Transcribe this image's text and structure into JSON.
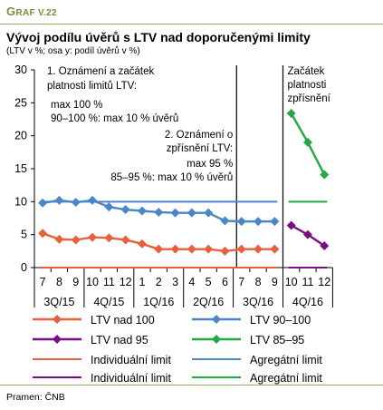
{
  "header": {
    "graf_label_first": "G",
    "graf_label_rest": "RAF V.22",
    "title": "Vývoj podílu úvěrů s LTV nad doporučenými limity",
    "subtitle": "(LTV v %; osa y: podíl úvěrů v %)",
    "source": "Pramen: ČNB"
  },
  "chart_data": {
    "type": "line",
    "y_ticks": [
      "0",
      "5",
      "10",
      "15",
      "20",
      "25",
      "30"
    ],
    "ylim": [
      0,
      30
    ],
    "grid": false,
    "month_labels": [
      "7",
      "8",
      "9",
      "10",
      "11",
      "12",
      "1",
      "2",
      "3",
      "4",
      "5",
      "6",
      "7",
      "8",
      "9",
      "10",
      "11",
      "12"
    ],
    "quarter_labels": [
      "3Q/15",
      "4Q/15",
      "1Q/16",
      "2Q/16",
      "3Q/16",
      "4Q/16"
    ],
    "series": [
      {
        "name": "LTV nad 100",
        "color": "#e8603c",
        "values": [
          5.2,
          4.3,
          4.2,
          4.6,
          4.5,
          4.2,
          3.6,
          2.8,
          2.8,
          2.8,
          2.8,
          2.5,
          2.8,
          2.8,
          2.8,
          null,
          null,
          null
        ]
      },
      {
        "name": "LTV 90–100",
        "color": "#4a86c8",
        "values": [
          9.8,
          10.2,
          9.9,
          10.2,
          9.2,
          8.8,
          8.6,
          8.4,
          8.3,
          8.3,
          8.3,
          7.1,
          7.0,
          7.0,
          7.0,
          null,
          null,
          null
        ]
      },
      {
        "name": "LTV nad 95",
        "color": "#7a0f85",
        "values": [
          null,
          null,
          null,
          null,
          null,
          null,
          null,
          null,
          null,
          null,
          null,
          null,
          null,
          null,
          null,
          6.4,
          5.0,
          3.3
        ]
      },
      {
        "name": "LTV 85–95",
        "color": "#22a845",
        "values": [
          null,
          null,
          null,
          null,
          null,
          null,
          null,
          null,
          null,
          null,
          null,
          null,
          null,
          null,
          null,
          23.4,
          19.0,
          14.1
        ]
      }
    ],
    "limits": [
      {
        "name": "Individuální limit",
        "color": "#e8603c",
        "value": 0,
        "from": "7",
        "to": "9",
        "span": "3Q/15–3Q/16"
      },
      {
        "name": "Agregátní limit",
        "color": "#4a86c8",
        "value": 10,
        "from": "7",
        "to": "9",
        "span": "3Q/15–3Q/16"
      },
      {
        "name": "Individuální limit",
        "color": "#7a0f85",
        "value": 0,
        "from": "10",
        "to": "12",
        "span": "4Q/16"
      },
      {
        "name": "Agregátní limit",
        "color": "#22a845",
        "value": 10,
        "from": "10",
        "to": "12",
        "span": "4Q/16"
      }
    ],
    "annotations": {
      "first_box": [
        "1. Oznámení  a začátek",
        "platnosti limitů LTV:",
        "",
        "max 100 %",
        "90–100 %: max 10 % úvěrů"
      ],
      "second_box": [
        "2. Oznámení o",
        "zpřísnění LTV:",
        "max 95 %",
        "85–95 %: max 10 % úvěrů"
      ],
      "third_box": [
        "Začátek",
        "platnosti",
        "zpřísnění"
      ]
    },
    "legend": [
      {
        "label": "LTV nad 100",
        "color": "#e8603c",
        "marker": "diamond"
      },
      {
        "label": "LTV 90–100",
        "color": "#4a86c8",
        "marker": "diamond"
      },
      {
        "label": "LTV nad 95",
        "color": "#7a0f85",
        "marker": "diamond"
      },
      {
        "label": "LTV 85–95",
        "color": "#22a845",
        "marker": "diamond"
      },
      {
        "label": "Individuální limit",
        "color": "#e8603c",
        "marker": "line"
      },
      {
        "label": "Agregátní limit",
        "color": "#4a86c8",
        "marker": "line"
      },
      {
        "label": "Individuální limit",
        "color": "#7a0f85",
        "marker": "line"
      },
      {
        "label": "Agregátní limit",
        "color": "#22a845",
        "marker": "line"
      }
    ]
  }
}
